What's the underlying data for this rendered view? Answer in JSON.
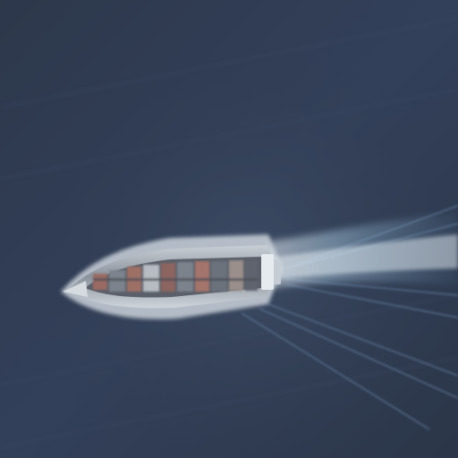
{
  "image": {
    "subject": "ship-icon",
    "colors": {
      "sea_dark": "#2a3547",
      "sea_mid": "#34415a",
      "sea_light": "#3d4b63",
      "wake_white": "#dfe9f2",
      "wake_blue": "#8fb8d4",
      "hull": "#8a929c",
      "hull_edge": "#d9dee3",
      "deck_shadow": "#4a4e57",
      "container_red": "#9a6a63",
      "container_grey": "#7c838c",
      "container_light": "#b7bcc2",
      "bridge": "#e6ebef"
    }
  }
}
